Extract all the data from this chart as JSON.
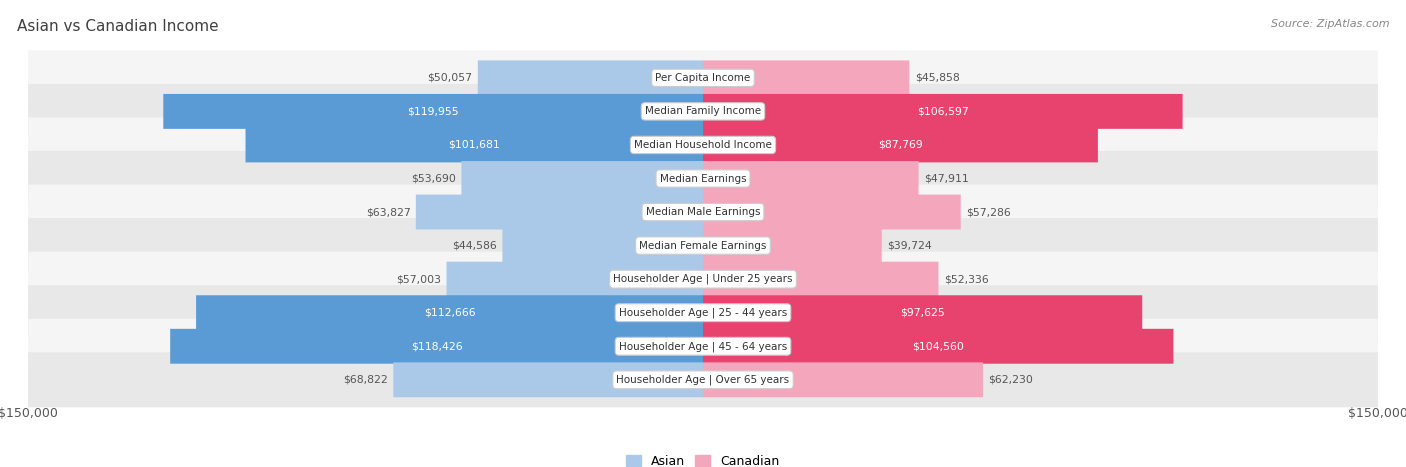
{
  "title": "Asian vs Canadian Income",
  "source": "Source: ZipAtlas.com",
  "categories": [
    "Per Capita Income",
    "Median Family Income",
    "Median Household Income",
    "Median Earnings",
    "Median Male Earnings",
    "Median Female Earnings",
    "Householder Age | Under 25 years",
    "Householder Age | 25 - 44 years",
    "Householder Age | 45 - 64 years",
    "Householder Age | Over 65 years"
  ],
  "asian_values": [
    50057,
    119955,
    101681,
    53690,
    63827,
    44586,
    57003,
    112666,
    118426,
    68822
  ],
  "canadian_values": [
    45858,
    106597,
    87769,
    47911,
    57286,
    39724,
    52336,
    97625,
    104560,
    62230
  ],
  "asian_labels": [
    "$50,057",
    "$119,955",
    "$101,681",
    "$53,690",
    "$63,827",
    "$44,586",
    "$57,003",
    "$112,666",
    "$118,426",
    "$68,822"
  ],
  "canadian_labels": [
    "$45,858",
    "$106,597",
    "$87,769",
    "$47,911",
    "$57,286",
    "$39,724",
    "$52,336",
    "$97,625",
    "$104,560",
    "$62,230"
  ],
  "max_value": 150000,
  "asian_color_light": "#aac8e8",
  "asian_color_dark": "#5b9bd5",
  "canadian_color_light": "#f4a7bc",
  "canadian_color_dark": "#e8436e",
  "row_bg_color_1": "#f5f5f5",
  "row_bg_color_2": "#e8e8e8",
  "title_color": "#404040",
  "label_color_inside": "#ffffff",
  "label_color_outside": "#555555",
  "axis_label_color": "#555555",
  "legend_asian": "Asian",
  "legend_canadian": "Canadian",
  "x_tick_labels": [
    "$150,000",
    "$150,000"
  ],
  "threshold_pct": 0.55
}
